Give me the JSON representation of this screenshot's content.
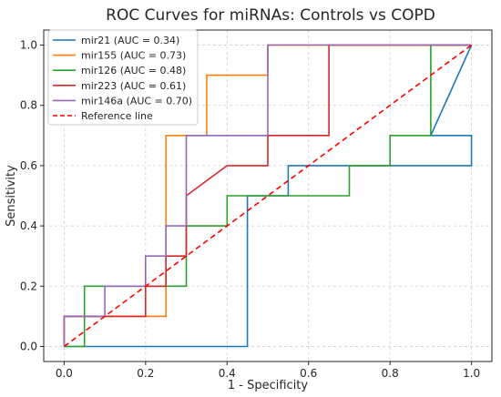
{
  "chart_data": {
    "type": "line",
    "title": "ROC Curves for miRNAs: Controls vs COPD",
    "xlabel": "1 - Specificity",
    "ylabel": "Sensitivity",
    "xlim": [
      -0.05,
      1.05
    ],
    "ylim": [
      -0.05,
      1.05
    ],
    "x_ticks": [
      "0.0",
      "0.2",
      "0.4",
      "0.6",
      "0.8",
      "1.0"
    ],
    "y_ticks": [
      "0.0",
      "0.2",
      "0.4",
      "0.6",
      "0.8",
      "1.0"
    ],
    "grid": true,
    "legend_position": "upper-left",
    "series": [
      {
        "name": "mir21 (AUC = 0.34)",
        "color": "#1f77b4",
        "dashed": false,
        "x": [
          0.0,
          0.45,
          0.45,
          0.55,
          0.55,
          1.0,
          1.0,
          0.9,
          0.9,
          1.0
        ],
        "y": [
          0.0,
          0.0,
          0.5,
          0.5,
          0.6,
          0.6,
          0.7,
          0.7,
          0.7,
          1.0
        ]
      },
      {
        "name": "mir155 (AUC = 0.73)",
        "color": "#ff7f0e",
        "dashed": false,
        "x": [
          0.0,
          0.0,
          0.25,
          0.25,
          0.35,
          0.35,
          0.5,
          0.5,
          1.0
        ],
        "y": [
          0.0,
          0.1,
          0.1,
          0.7,
          0.7,
          0.9,
          0.9,
          1.0,
          1.0
        ]
      },
      {
        "name": "mir126 (AUC = 0.48)",
        "color": "#2ca02c",
        "dashed": false,
        "x": [
          0.0,
          0.05,
          0.05,
          0.1,
          0.1,
          0.3,
          0.3,
          0.4,
          0.4,
          0.55,
          0.55,
          0.7,
          0.7,
          0.8,
          0.8,
          0.9,
          0.9,
          1.0
        ],
        "y": [
          0.0,
          0.0,
          0.2,
          0.2,
          0.2,
          0.2,
          0.4,
          0.4,
          0.5,
          0.5,
          0.5,
          0.5,
          0.6,
          0.6,
          0.7,
          0.7,
          1.0,
          1.0
        ]
      },
      {
        "name": "mir223 (AUC = 0.61)",
        "color": "#d62728",
        "dashed": false,
        "x": [
          0.0,
          0.0,
          0.2,
          0.2,
          0.25,
          0.25,
          0.3,
          0.3,
          0.4,
          0.5,
          0.5,
          0.65,
          0.65,
          1.0
        ],
        "y": [
          0.0,
          0.1,
          0.1,
          0.2,
          0.2,
          0.3,
          0.3,
          0.5,
          0.6,
          0.6,
          0.7,
          0.7,
          1.0,
          1.0
        ]
      },
      {
        "name": "mir146a (AUC = 0.70)",
        "color": "#9467bd",
        "dashed": false,
        "x": [
          0.0,
          0.0,
          0.1,
          0.1,
          0.2,
          0.2,
          0.25,
          0.25,
          0.3,
          0.3,
          0.5,
          0.5,
          1.0
        ],
        "y": [
          0.0,
          0.1,
          0.1,
          0.2,
          0.2,
          0.3,
          0.3,
          0.4,
          0.4,
          0.7,
          0.7,
          1.0,
          1.0
        ]
      },
      {
        "name": "Reference line",
        "color": "#ff0000",
        "dashed": true,
        "x": [
          0.0,
          1.0
        ],
        "y": [
          0.0,
          1.0
        ]
      }
    ]
  }
}
